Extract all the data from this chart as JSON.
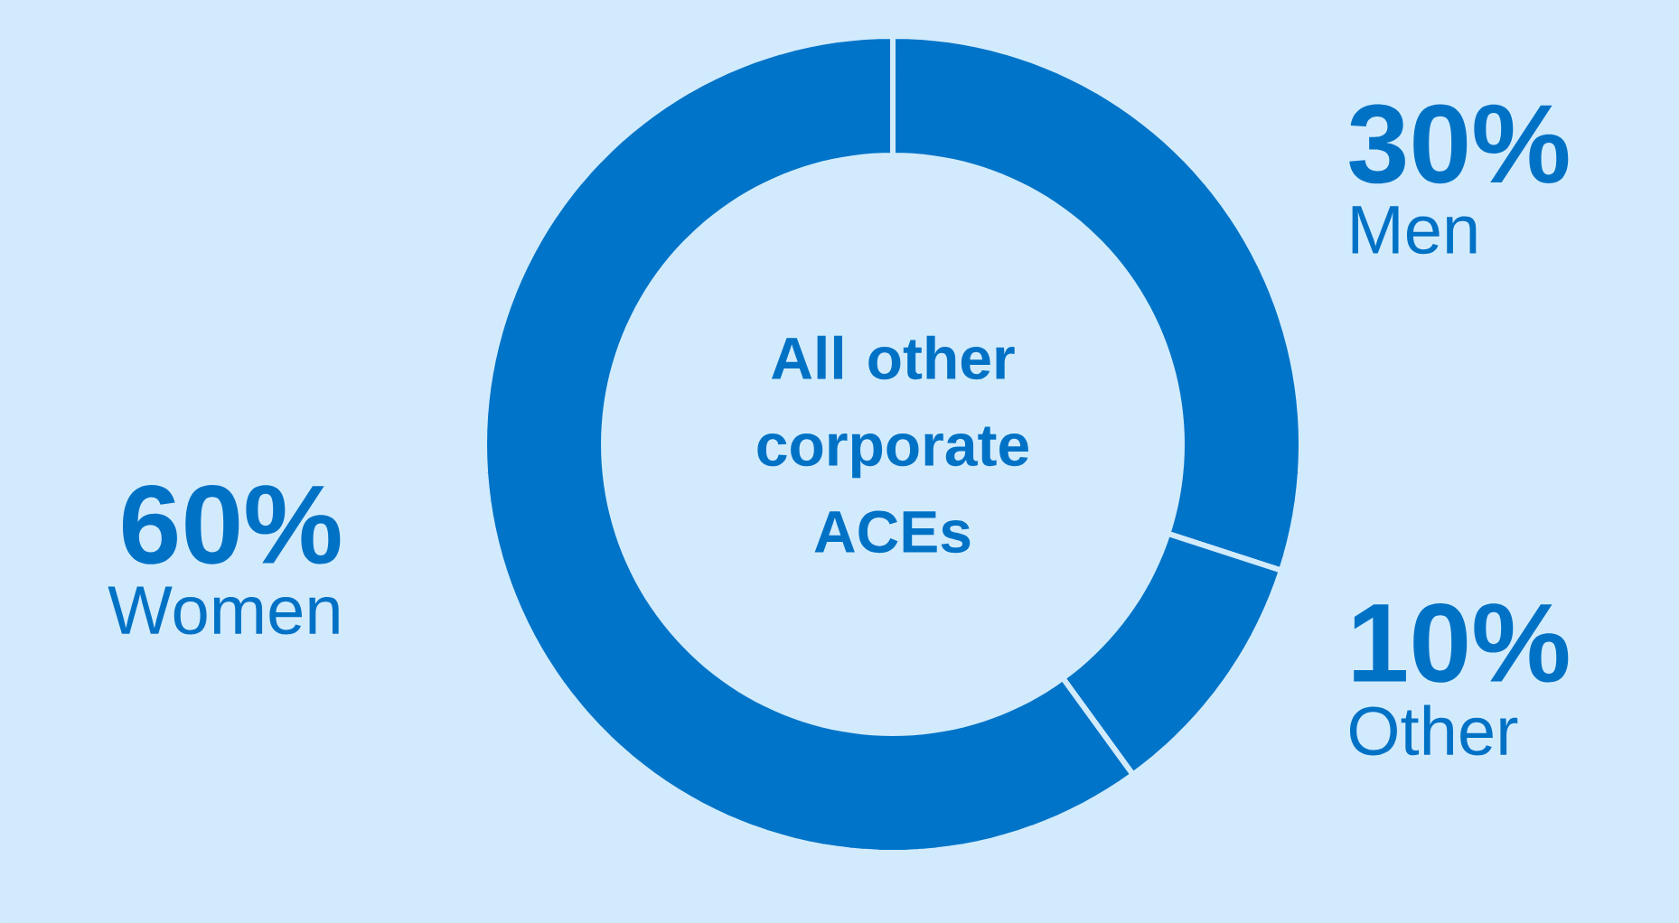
{
  "chart_data": {
    "type": "donut",
    "title": "All other corporate ACEs",
    "categories": [
      "Men",
      "Other",
      "Women"
    ],
    "values": [
      30,
      10,
      60
    ],
    "value_labels": [
      "30%",
      "10%",
      "60%"
    ],
    "colors": [
      "#0074c8",
      "#0074c8",
      "#0074c8"
    ]
  }
}
